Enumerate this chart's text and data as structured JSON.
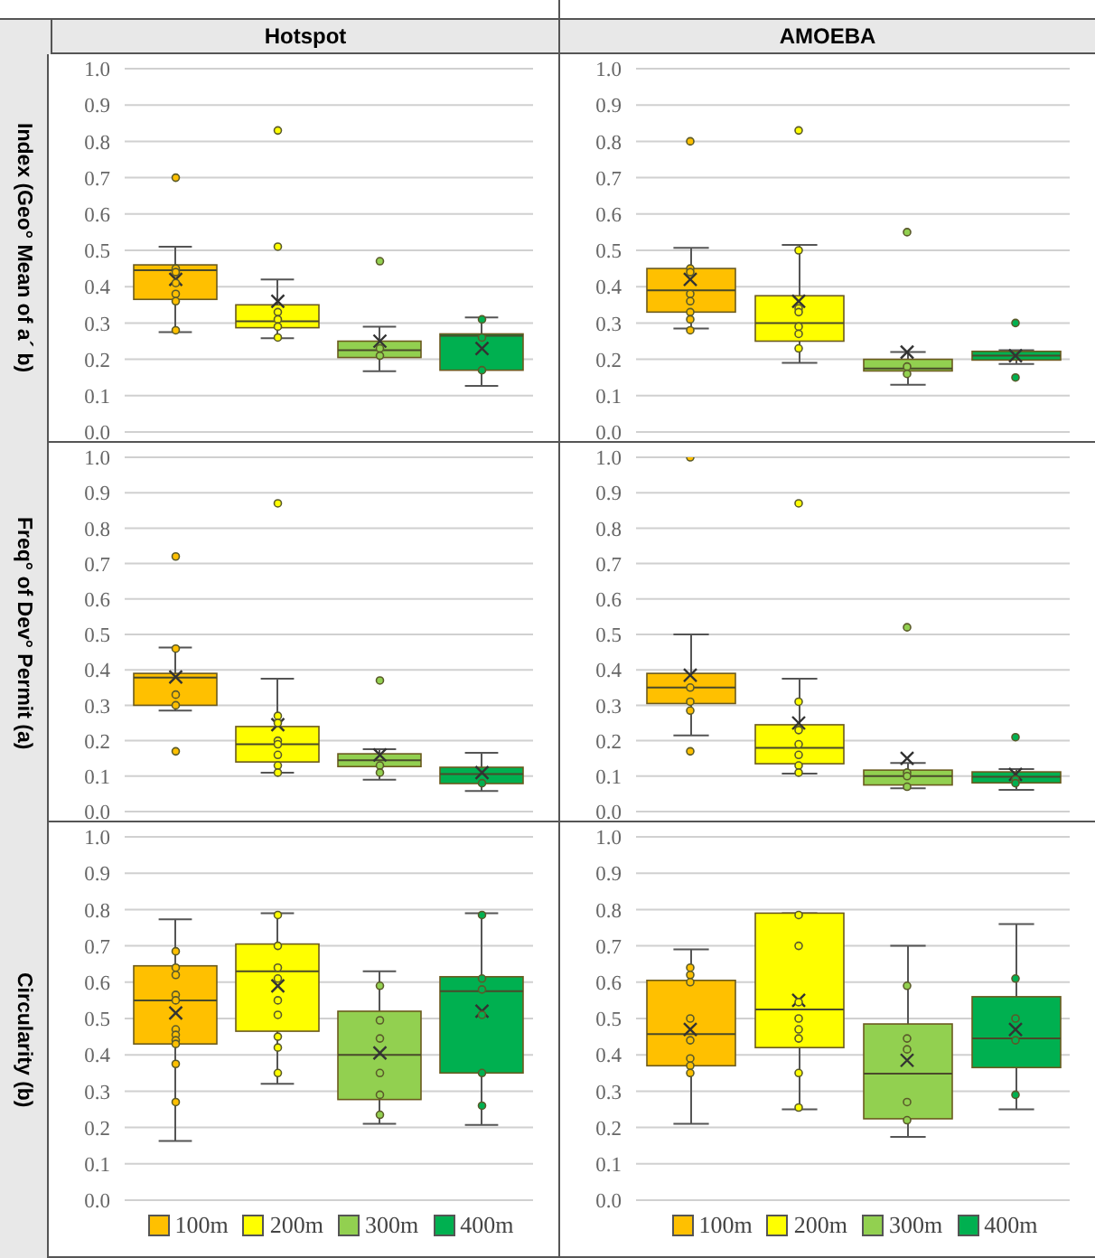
{
  "chart_data": [
    {
      "type": "box",
      "title": "Hotspot",
      "ylabel": "Index (Geo° Mean of a´ b)",
      "categories": [
        null
      ],
      "ylim": [
        0,
        1
      ],
      "yticks": [
        {
          "value": 0,
          "label": "0.0"
        },
        {
          "value": 0.1,
          "label": "0.1"
        },
        {
          "value": 0.2,
          "label": "0.2"
        },
        {
          "value": 0.3,
          "label": "0.3"
        },
        {
          "value": 0.4,
          "label": "0.4"
        },
        {
          "value": 0.5,
          "label": "0.5"
        },
        {
          "value": 0.6,
          "label": "0.6"
        },
        {
          "value": 0.7,
          "label": "0.7"
        },
        {
          "value": 0.8,
          "label": "0.8"
        },
        {
          "value": 0.9,
          "label": "0.9"
        },
        {
          "value": 1,
          "label": "1.0"
        }
      ],
      "grid": "y",
      "series": [
        {
          "color": "#ffc000",
          "boxes": [
            {
              "low": 0.275,
              "q1": 0.365,
              "median": 0.445,
              "q3": 0.46,
              "high": 0.51,
              "mean": 0.42,
              "outliers": [
                0.7,
                0.45,
                0.44,
                0.41,
                0.38,
                0.36,
                0.28
              ]
            }
          ]
        },
        {
          "color": "#ffff00",
          "boxes": [
            {
              "low": 0.258,
              "q1": 0.287,
              "median": 0.305,
              "q3": 0.35,
              "high": 0.42,
              "mean": 0.36,
              "outliers": [
                0.83,
                0.51,
                0.33,
                0.31,
                0.29,
                0.26
              ]
            }
          ]
        },
        {
          "color": "#92d050",
          "boxes": [
            {
              "low": 0.167,
              "q1": 0.205,
              "median": 0.225,
              "q3": 0.25,
              "high": 0.29,
              "mean": 0.25,
              "outliers": [
                0.47,
                0.23,
                0.21
              ]
            }
          ]
        },
        {
          "color": "#00b050",
          "boxes": [
            {
              "low": 0.127,
              "q1": 0.17,
              "median": 0.265,
              "q3": 0.27,
              "high": 0.315,
              "mean": 0.23,
              "outliers": [
                0.31,
                0.26,
                0.17
              ]
            }
          ]
        }
      ]
    },
    {
      "type": "box",
      "title": "AMOEBA",
      "categories": [
        null
      ],
      "ylim": [
        0,
        1
      ],
      "yticks": [
        {
          "value": 0,
          "label": "0.0"
        },
        {
          "value": 0.1,
          "label": "0.1"
        },
        {
          "value": 0.2,
          "label": "0.2"
        },
        {
          "value": 0.3,
          "label": "0.3"
        },
        {
          "value": 0.4,
          "label": "0.4"
        },
        {
          "value": 0.5,
          "label": "0.5"
        },
        {
          "value": 0.6,
          "label": "0.6"
        },
        {
          "value": 0.7,
          "label": "0.7"
        },
        {
          "value": 0.8,
          "label": "0.8"
        },
        {
          "value": 0.9,
          "label": "0.9"
        },
        {
          "value": 1,
          "label": "1.0"
        }
      ],
      "grid": "y",
      "series": [
        {
          "color": "#ffc000",
          "boxes": [
            {
              "low": 0.285,
              "q1": 0.33,
              "median": 0.39,
              "q3": 0.45,
              "high": 0.507,
              "mean": 0.42,
              "outliers": [
                0.8,
                0.45,
                0.44,
                0.38,
                0.36,
                0.33,
                0.31,
                0.28
              ]
            }
          ]
        },
        {
          "color": "#ffff00",
          "boxes": [
            {
              "low": 0.19,
              "q1": 0.25,
              "median": 0.3,
              "q3": 0.375,
              "high": 0.515,
              "mean": 0.36,
              "outliers": [
                0.83,
                0.5,
                0.34,
                0.33,
                0.29,
                0.27,
                0.23
              ]
            }
          ]
        },
        {
          "color": "#92d050",
          "boxes": [
            {
              "low": 0.13,
              "q1": 0.168,
              "median": 0.175,
              "q3": 0.2,
              "high": 0.22,
              "mean": 0.22,
              "outliers": [
                0.55,
                0.18,
                0.16
              ]
            }
          ]
        },
        {
          "color": "#00b050",
          "boxes": [
            {
              "low": 0.187,
              "q1": 0.198,
              "median": 0.21,
              "q3": 0.222,
              "high": 0.225,
              "mean": 0.21,
              "outliers": [
                0.3,
                0.15
              ]
            }
          ]
        }
      ]
    },
    {
      "type": "box",
      "ylabel": "Freq° of Dev° Permit (a)",
      "categories": [
        null
      ],
      "ylim": [
        0,
        1
      ],
      "yticks": [
        {
          "value": 0,
          "label": "0.0"
        },
        {
          "value": 0.1,
          "label": "0.1"
        },
        {
          "value": 0.2,
          "label": "0.2"
        },
        {
          "value": 0.3,
          "label": "0.3"
        },
        {
          "value": 0.4,
          "label": "0.4"
        },
        {
          "value": 0.5,
          "label": "0.5"
        },
        {
          "value": 0.6,
          "label": "0.6"
        },
        {
          "value": 0.7,
          "label": "0.7"
        },
        {
          "value": 0.8,
          "label": "0.8"
        },
        {
          "value": 0.9,
          "label": "0.9"
        },
        {
          "value": 1,
          "label": "1.0"
        }
      ],
      "grid": "y",
      "series": [
        {
          "color": "#ffc000",
          "boxes": [
            {
              "low": 0.285,
              "q1": 0.3,
              "median": 0.378,
              "q3": 0.39,
              "high": 0.463,
              "mean": 0.38,
              "outliers": [
                0.72,
                0.46,
                0.33,
                0.3,
                0.17
              ]
            }
          ]
        },
        {
          "color": "#ffff00",
          "boxes": [
            {
              "low": 0.11,
              "q1": 0.14,
              "median": 0.19,
              "q3": 0.24,
              "high": 0.375,
              "mean": 0.245,
              "outliers": [
                0.87,
                0.27,
                0.25,
                0.2,
                0.19,
                0.16,
                0.13,
                0.11
              ]
            }
          ]
        },
        {
          "color": "#92d050",
          "boxes": [
            {
              "low": 0.09,
              "q1": 0.127,
              "median": 0.145,
              "q3": 0.163,
              "high": 0.176,
              "mean": 0.16,
              "outliers": [
                0.37,
                0.13,
                0.11
              ]
            }
          ]
        },
        {
          "color": "#00b050",
          "boxes": [
            {
              "low": 0.058,
              "q1": 0.079,
              "median": 0.106,
              "q3": 0.125,
              "high": 0.166,
              "mean": 0.11,
              "outliers": [
                0.08
              ]
            }
          ]
        }
      ]
    },
    {
      "type": "box",
      "categories": [
        null
      ],
      "ylim": [
        0,
        1
      ],
      "yticks": [
        {
          "value": 0,
          "label": "0.0"
        },
        {
          "value": 0.1,
          "label": "0.1"
        },
        {
          "value": 0.2,
          "label": "0.2"
        },
        {
          "value": 0.3,
          "label": "0.3"
        },
        {
          "value": 0.4,
          "label": "0.4"
        },
        {
          "value": 0.5,
          "label": "0.5"
        },
        {
          "value": 0.6,
          "label": "0.6"
        },
        {
          "value": 0.7,
          "label": "0.7"
        },
        {
          "value": 0.8,
          "label": "0.8"
        },
        {
          "value": 0.9,
          "label": "0.9"
        },
        {
          "value": 1,
          "label": "1.0"
        }
      ],
      "grid": "y",
      "series": [
        {
          "color": "#ffc000",
          "boxes": [
            {
              "low": 0.215,
              "q1": 0.305,
              "median": 0.35,
              "q3": 0.39,
              "high": 0.5,
              "mean": 0.385,
              "outliers": [
                1.0,
                0.35,
                0.31,
                0.285,
                0.17
              ]
            }
          ]
        },
        {
          "color": "#ffff00",
          "boxes": [
            {
              "low": 0.107,
              "q1": 0.135,
              "median": 0.18,
              "q3": 0.245,
              "high": 0.375,
              "mean": 0.25,
              "outliers": [
                0.87,
                0.31,
                0.23,
                0.19,
                0.16,
                0.13,
                0.11
              ]
            }
          ]
        },
        {
          "color": "#92d050",
          "boxes": [
            {
              "low": 0.066,
              "q1": 0.075,
              "median": 0.1,
              "q3": 0.117,
              "high": 0.137,
              "mean": 0.15,
              "outliers": [
                0.52,
                0.11,
                0.1,
                0.07
              ]
            }
          ]
        },
        {
          "color": "#00b050",
          "boxes": [
            {
              "low": 0.061,
              "q1": 0.081,
              "median": 0.098,
              "q3": 0.112,
              "high": 0.12,
              "mean": 0.105,
              "outliers": [
                0.21,
                0.09,
                0.08
              ]
            }
          ]
        }
      ]
    },
    {
      "type": "box",
      "ylabel": "Circularity (b)",
      "categories": [
        null
      ],
      "ylim": [
        0,
        1
      ],
      "yticks": [
        {
          "value": 0,
          "label": "0.0"
        },
        {
          "value": 0.1,
          "label": "0.1"
        },
        {
          "value": 0.2,
          "label": "0.2"
        },
        {
          "value": 0.3,
          "label": "0.3"
        },
        {
          "value": 0.4,
          "label": "0.4"
        },
        {
          "value": 0.5,
          "label": "0.5"
        },
        {
          "value": 0.6,
          "label": "0.6"
        },
        {
          "value": 0.7,
          "label": "0.7"
        },
        {
          "value": 0.8,
          "label": "0.8"
        },
        {
          "value": 0.9,
          "label": "0.9"
        },
        {
          "value": 1,
          "label": "1.0"
        }
      ],
      "grid": "y",
      "legend": "bottom",
      "series": [
        {
          "name": "100m",
          "color": "#ffc000",
          "boxes": [
            {
              "low": 0.163,
              "q1": 0.43,
              "median": 0.55,
              "q3": 0.645,
              "high": 0.773,
              "mean": 0.515,
              "outliers": [
                0.685,
                0.64,
                0.62,
                0.565,
                0.55,
                0.47,
                0.455,
                0.44,
                0.43,
                0.375,
                0.27
              ]
            }
          ]
        },
        {
          "name": "200m",
          "color": "#ffff00",
          "boxes": [
            {
              "low": 0.32,
              "q1": 0.465,
              "median": 0.63,
              "q3": 0.705,
              "high": 0.79,
              "mean": 0.59,
              "outliers": [
                0.785,
                0.7,
                0.64,
                0.61,
                0.55,
                0.51,
                0.45,
                0.42,
                0.35
              ]
            }
          ]
        },
        {
          "name": "300m",
          "color": "#92d050",
          "boxes": [
            {
              "low": 0.21,
              "q1": 0.277,
              "median": 0.4,
              "q3": 0.52,
              "high": 0.63,
              "mean": 0.405,
              "outliers": [
                0.59,
                0.495,
                0.445,
                0.35,
                0.29,
                0.235
              ]
            }
          ]
        },
        {
          "name": "400m",
          "color": "#00b050",
          "boxes": [
            {
              "low": 0.207,
              "q1": 0.35,
              "median": 0.575,
              "q3": 0.615,
              "high": 0.79,
              "mean": 0.52,
              "outliers": [
                0.785,
                0.61,
                0.58,
                0.51,
                0.35,
                0.26
              ]
            }
          ]
        }
      ]
    },
    {
      "type": "box",
      "categories": [
        null
      ],
      "ylim": [
        0,
        1
      ],
      "yticks": [
        {
          "value": 0,
          "label": "0.0"
        },
        {
          "value": 0.1,
          "label": "0.1"
        },
        {
          "value": 0.2,
          "label": "0.2"
        },
        {
          "value": 0.3,
          "label": "0.3"
        },
        {
          "value": 0.4,
          "label": "0.4"
        },
        {
          "value": 0.5,
          "label": "0.5"
        },
        {
          "value": 0.6,
          "label": "0.6"
        },
        {
          "value": 0.7,
          "label": "0.7"
        },
        {
          "value": 0.8,
          "label": "0.8"
        },
        {
          "value": 0.9,
          "label": "0.9"
        },
        {
          "value": 1,
          "label": "1.0"
        }
      ],
      "grid": "y",
      "legend": "bottom",
      "series": [
        {
          "name": "100m",
          "color": "#ffc000",
          "boxes": [
            {
              "low": 0.21,
              "q1": 0.37,
              "median": 0.457,
              "q3": 0.605,
              "high": 0.69,
              "mean": 0.47,
              "outliers": [
                0.64,
                0.62,
                0.6,
                0.5,
                0.44,
                0.39,
                0.37,
                0.35
              ]
            }
          ]
        },
        {
          "name": "200m",
          "color": "#ffff00",
          "boxes": [
            {
              "low": 0.25,
              "q1": 0.42,
              "median": 0.525,
              "q3": 0.79,
              "high": 0.79,
              "mean": 0.55,
              "outliers": [
                0.785,
                0.7,
                0.545,
                0.5,
                0.47,
                0.445,
                0.35,
                0.255
              ]
            }
          ]
        },
        {
          "name": "300m",
          "color": "#92d050",
          "boxes": [
            {
              "low": 0.174,
              "q1": 0.224,
              "median": 0.348,
              "q3": 0.485,
              "high": 0.7,
              "mean": 0.385,
              "outliers": [
                0.59,
                0.445,
                0.415,
                0.27,
                0.22
              ]
            }
          ]
        },
        {
          "name": "400m",
          "color": "#00b050",
          "boxes": [
            {
              "low": 0.25,
              "q1": 0.365,
              "median": 0.445,
              "q3": 0.56,
              "high": 0.76,
              "mean": 0.47,
              "outliers": [
                0.61,
                0.5,
                0.44,
                0.29
              ]
            }
          ]
        }
      ]
    }
  ]
}
